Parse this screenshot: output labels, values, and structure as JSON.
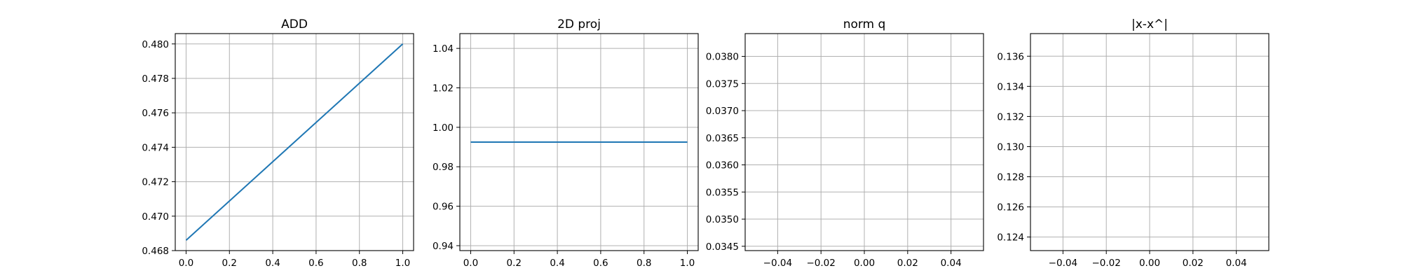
{
  "chart_data": [
    {
      "type": "line",
      "title": "ADD",
      "xlim": [
        -0.05,
        1.05
      ],
      "ylim": [
        0.468,
        0.4806
      ],
      "xticks": [
        0.0,
        0.2,
        0.4,
        0.6,
        0.8,
        1.0
      ],
      "xtick_labels": [
        "0.0",
        "0.2",
        "0.4",
        "0.6",
        "0.8",
        "1.0"
      ],
      "yticks": [
        0.468,
        0.47,
        0.472,
        0.474,
        0.476,
        0.478,
        0.48
      ],
      "ytick_labels": [
        "0.468",
        "0.470",
        "0.472",
        "0.474",
        "0.476",
        "0.478",
        "0.480"
      ],
      "grid": true,
      "series": [
        {
          "x": [
            0.0,
            1.0
          ],
          "y": [
            0.4686,
            0.48
          ],
          "color": "#1f77b4"
        }
      ]
    },
    {
      "type": "line",
      "title": "2D proj",
      "xlim": [
        -0.05,
        1.05
      ],
      "ylim": [
        0.9375,
        1.0475
      ],
      "xticks": [
        0.0,
        0.2,
        0.4,
        0.6,
        0.8,
        1.0
      ],
      "xtick_labels": [
        "0.0",
        "0.2",
        "0.4",
        "0.6",
        "0.8",
        "1.0"
      ],
      "yticks": [
        0.94,
        0.96,
        0.98,
        1.0,
        1.02,
        1.04
      ],
      "ytick_labels": [
        "0.94",
        "0.96",
        "0.98",
        "1.00",
        "1.02",
        "1.04"
      ],
      "grid": true,
      "series": [
        {
          "x": [
            0.0,
            1.0
          ],
          "y": [
            0.9925,
            0.9925
          ],
          "color": "#1f77b4"
        }
      ]
    },
    {
      "type": "line",
      "title": "norm q",
      "xlim": [
        -0.055,
        0.055
      ],
      "ylim": [
        0.03442,
        0.03842
      ],
      "xticks": [
        -0.04,
        -0.02,
        0.0,
        0.02,
        0.04
      ],
      "xtick_labels": [
        "−0.04",
        "−0.02",
        "0.00",
        "0.02",
        "0.04"
      ],
      "yticks": [
        0.0345,
        0.035,
        0.0355,
        0.036,
        0.0365,
        0.037,
        0.0375,
        0.038
      ],
      "ytick_labels": [
        "0.0345",
        "0.0350",
        "0.0355",
        "0.0360",
        "0.0365",
        "0.0370",
        "0.0375",
        "0.0380"
      ],
      "grid": true,
      "series": []
    },
    {
      "type": "line",
      "title": "|x-x^|",
      "xlim": [
        -0.055,
        0.055
      ],
      "ylim": [
        0.1231,
        0.1375
      ],
      "xticks": [
        -0.04,
        -0.02,
        0.0,
        0.02,
        0.04
      ],
      "xtick_labels": [
        "−0.04",
        "−0.02",
        "0.00",
        "0.02",
        "0.04"
      ],
      "yticks": [
        0.124,
        0.126,
        0.128,
        0.13,
        0.132,
        0.134,
        0.136
      ],
      "ytick_labels": [
        "0.124",
        "0.126",
        "0.128",
        "0.130",
        "0.132",
        "0.134",
        "0.136"
      ],
      "grid": true,
      "series": []
    }
  ]
}
